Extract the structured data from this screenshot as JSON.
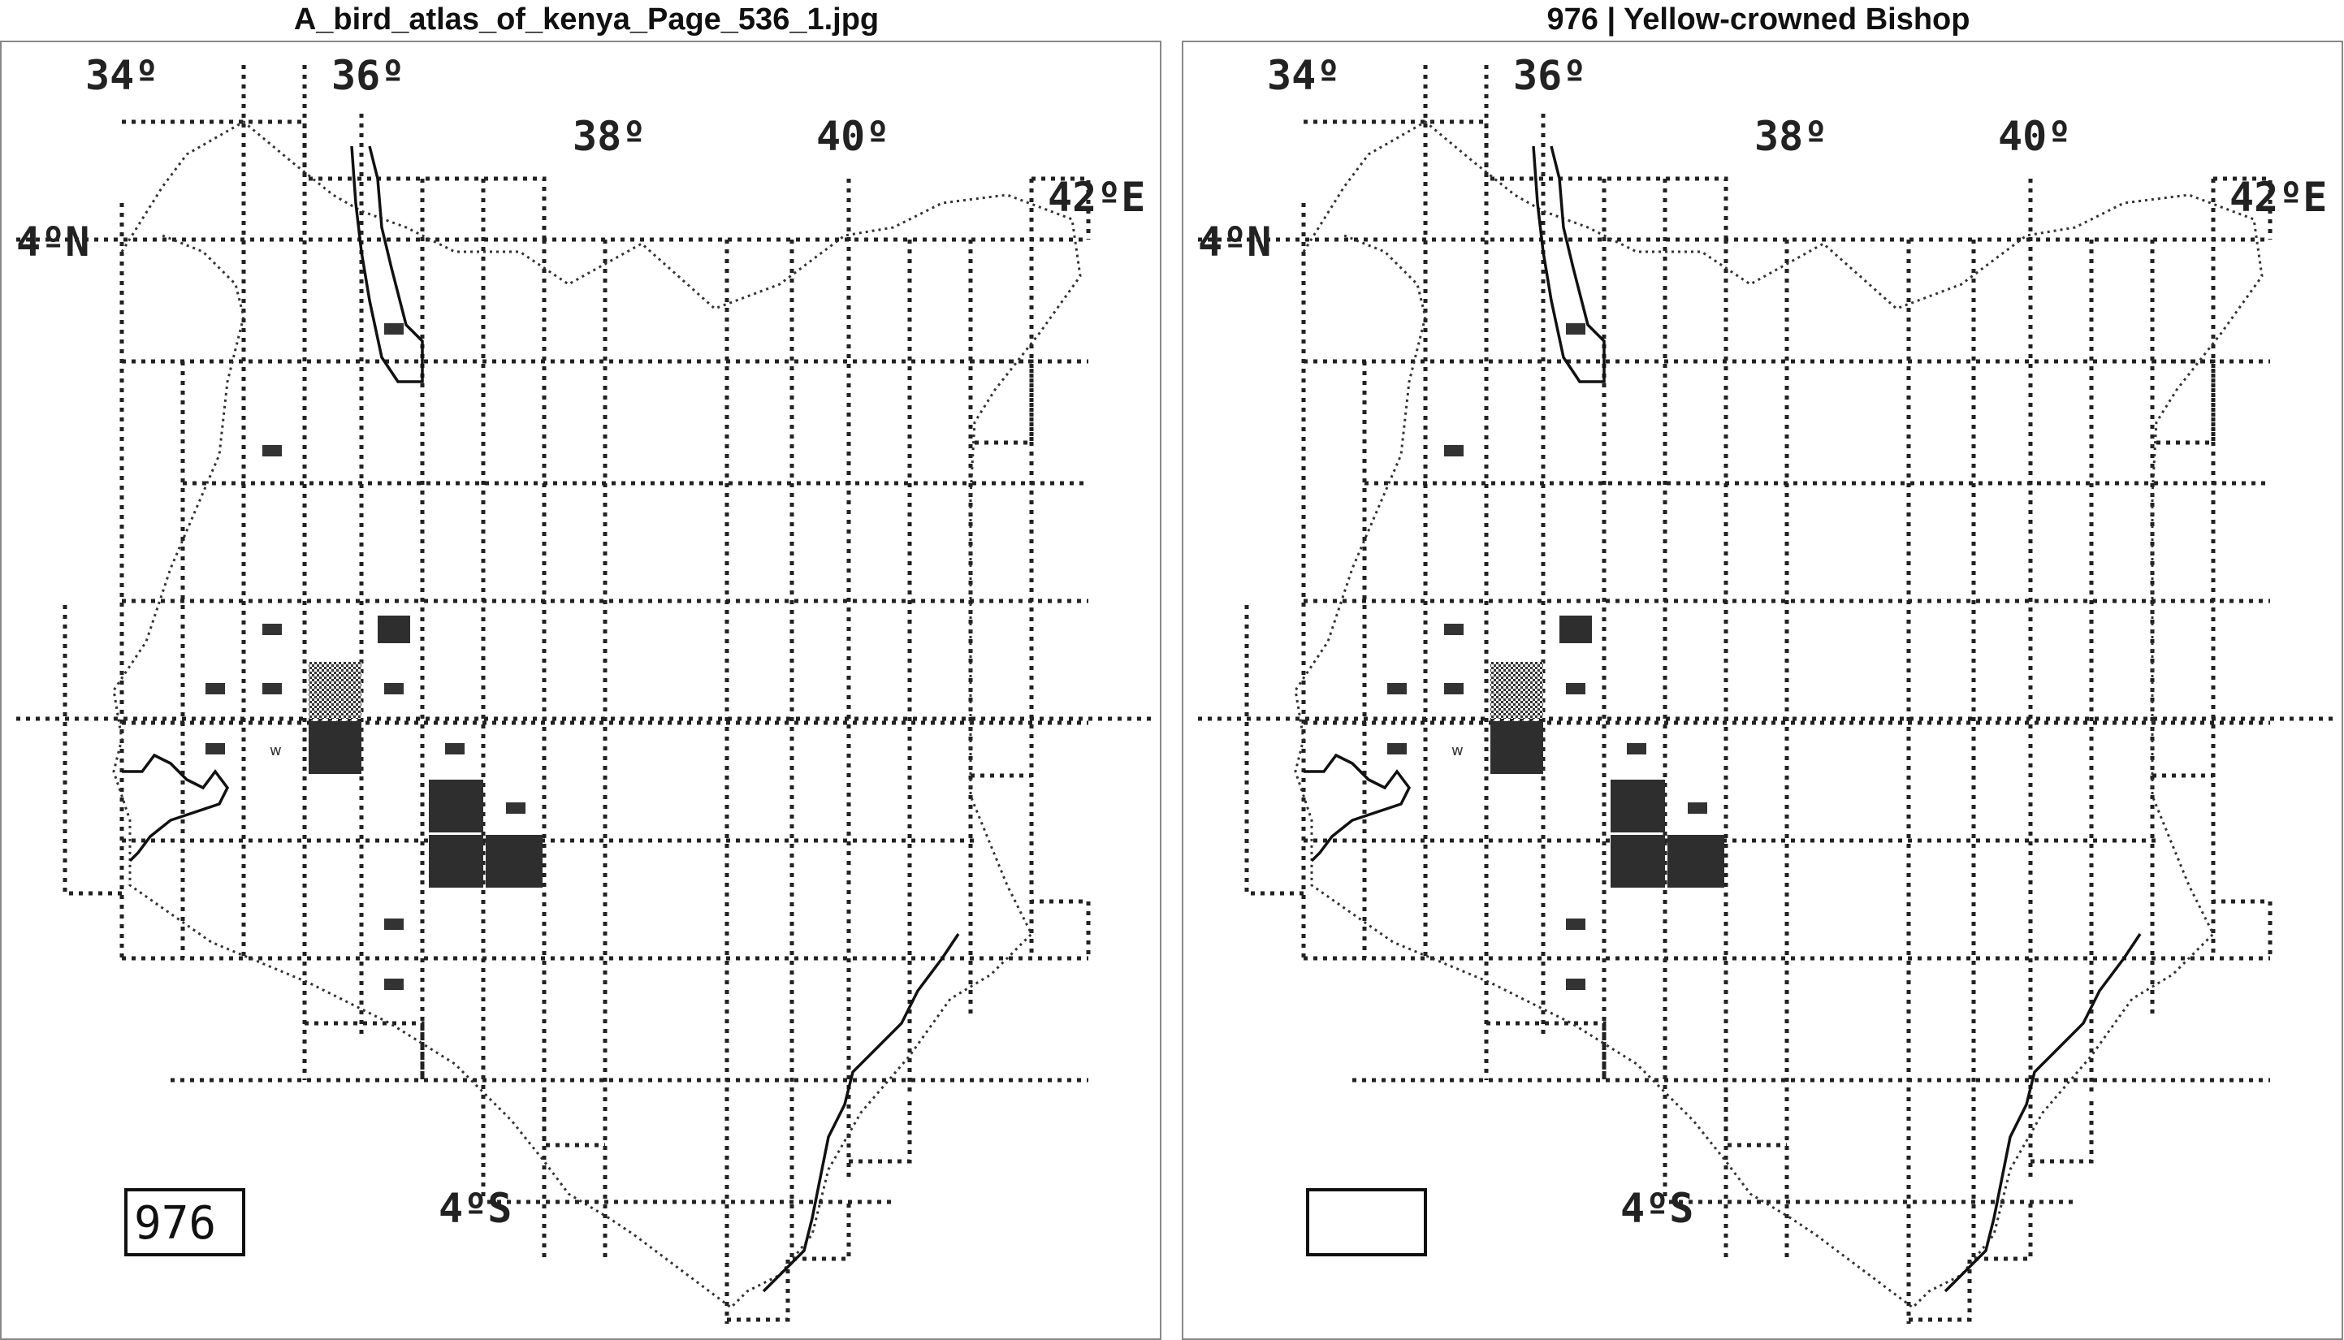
{
  "left_panel": {
    "title": "A_bird_atlas_of_kenya_Page_536_1.jpg",
    "map_number": "976"
  },
  "right_panel": {
    "title": "976 | Yellow-crowned Bishop",
    "map_number": ""
  },
  "map": {
    "labels": {
      "lon_34": "34º",
      "lon_36": "36º",
      "lon_38": "38º",
      "lon_40": "40º",
      "lon_42": "42ºE",
      "lat_4n": "4ºN",
      "lat_4s": "4ºS"
    },
    "wetland_marker": "w"
  },
  "colors": {
    "ink": "#2e2e2e",
    "frame": "#888888",
    "background": "#ffffff"
  }
}
